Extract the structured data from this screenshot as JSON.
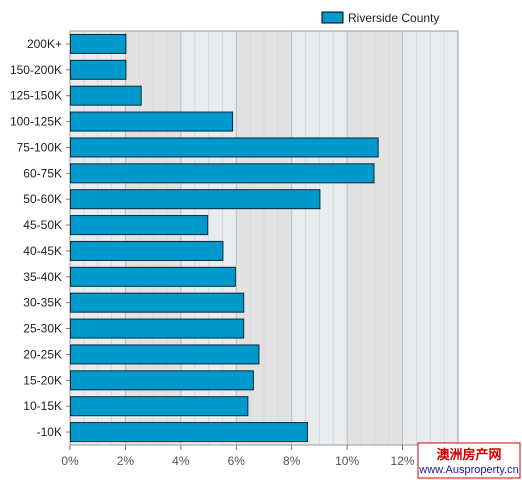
{
  "chart_data": {
    "type": "bar",
    "orientation": "horizontal",
    "categories": [
      "200K+",
      "150-200K",
      "125-150K",
      "100-125K",
      "75-100K",
      "60-75K",
      "50-60K",
      "45-50K",
      "40-45K",
      "35-40K",
      "30-35K",
      "25-30K",
      "20-25K",
      "15-20K",
      "10-15K",
      "-10K"
    ],
    "series": [
      {
        "name": "Riverside County",
        "color": "#0099cc",
        "values": [
          2.0,
          2.0,
          2.55,
          5.85,
          11.1,
          10.95,
          9.0,
          4.95,
          5.5,
          5.95,
          6.25,
          6.25,
          6.8,
          6.6,
          6.4,
          8.55
        ]
      }
    ],
    "xlim": [
      0,
      14
    ],
    "xticks": [
      0,
      2,
      4,
      6,
      8,
      10,
      12
    ],
    "xtick_labels": [
      "0%",
      "2%",
      "4%",
      "6%",
      "8%",
      "10%",
      "12%"
    ],
    "grid": true,
    "legend_position": "top-right",
    "title": "",
    "xlabel": "",
    "ylabel": ""
  },
  "watermark": {
    "line1": "澳洲房产网",
    "line2": "www.Ausproperty.cn"
  }
}
